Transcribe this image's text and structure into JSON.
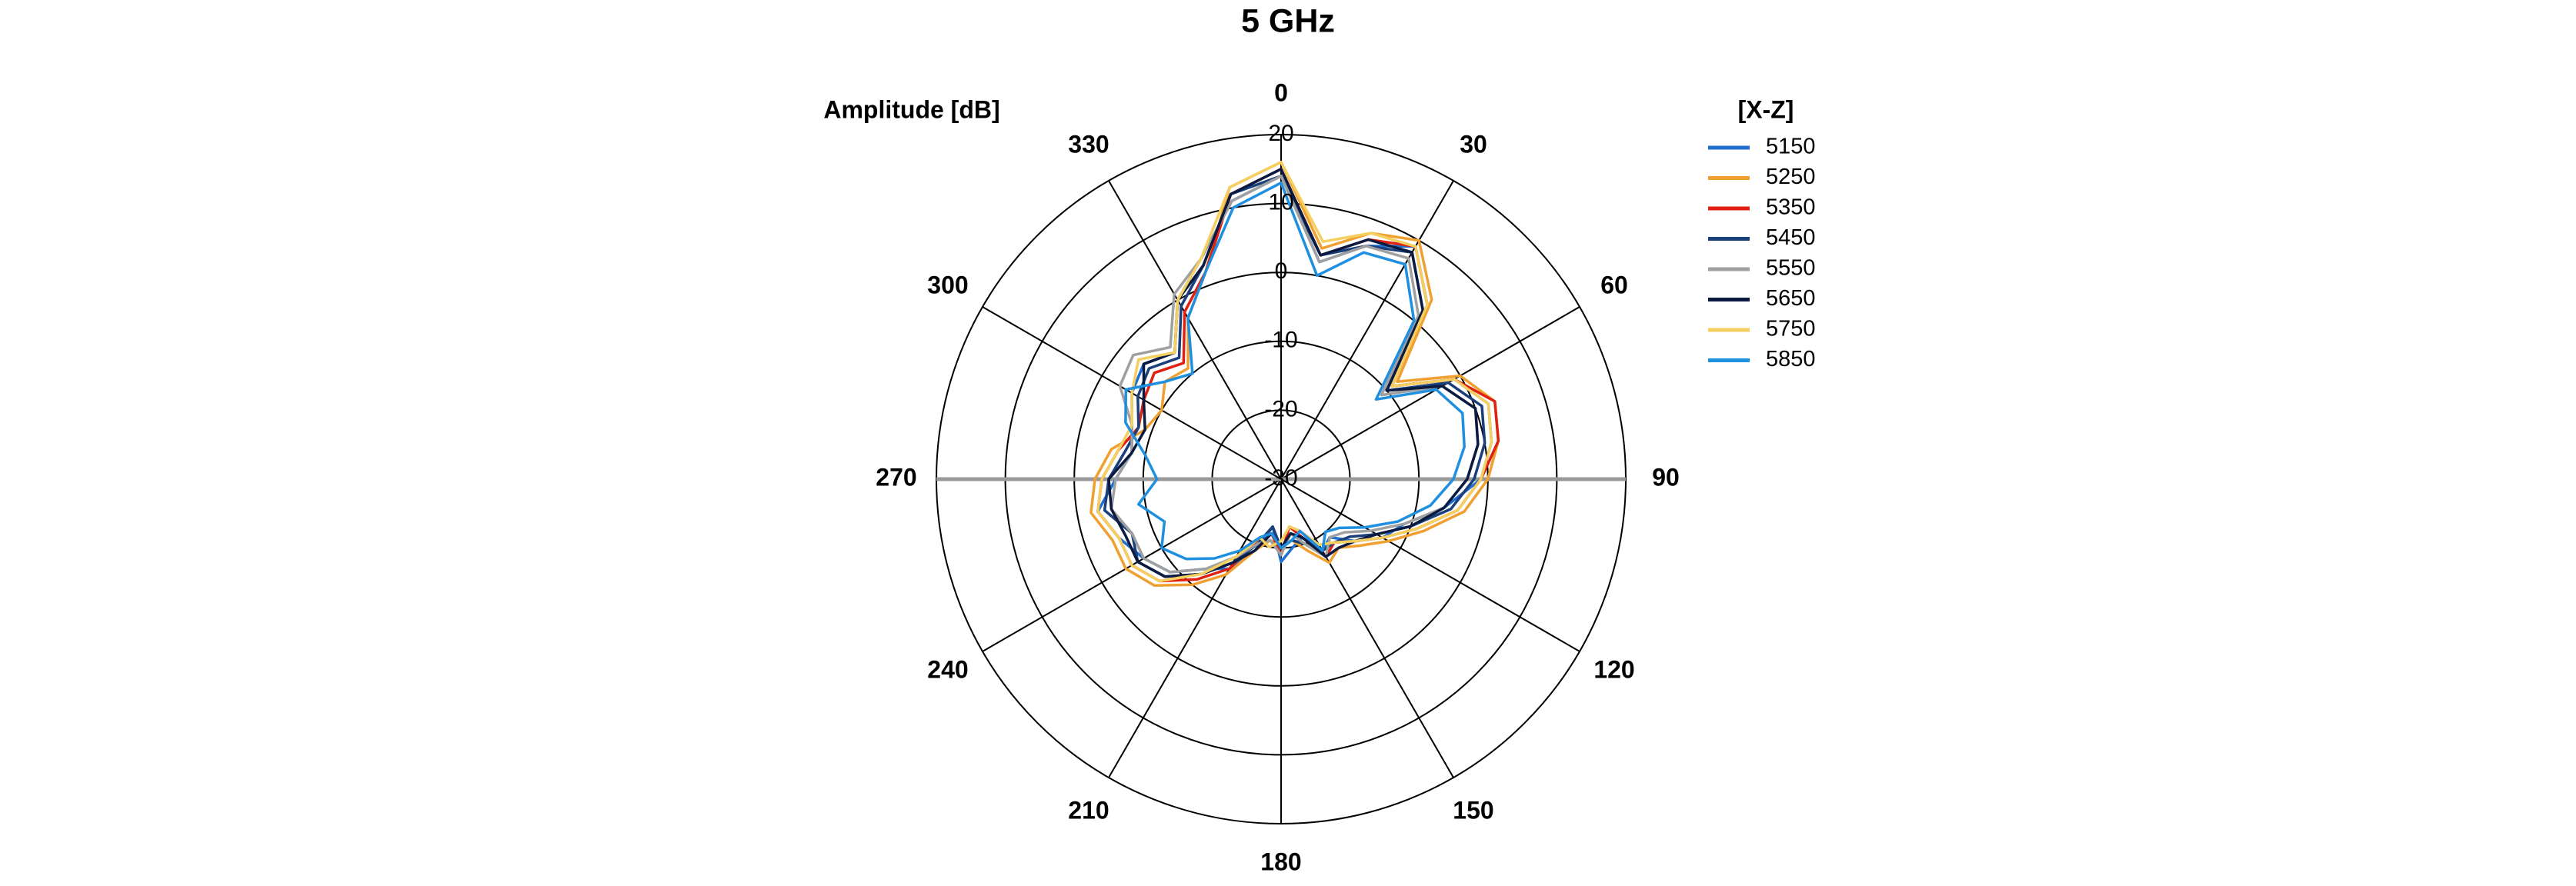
{
  "chart_data": {
    "type": "polar",
    "title": "5 GHz",
    "r_axis_label": "Amplitude [dB]",
    "legend_title": "[X-Z]",
    "x": [
      0,
      10,
      20,
      30,
      40,
      50,
      60,
      70,
      80,
      90,
      100,
      110,
      120,
      130,
      140,
      150,
      160,
      170,
      180,
      190,
      200,
      210,
      220,
      230,
      240,
      250,
      260,
      270,
      280,
      290,
      300,
      310,
      320,
      330,
      340,
      350
    ],
    "xticks": [
      0,
      30,
      60,
      90,
      120,
      150,
      180,
      210,
      240,
      270,
      300,
      330
    ],
    "ylim": [
      -30,
      20
    ],
    "yticks": [
      -30,
      -20,
      -10,
      0,
      10,
      20
    ],
    "series": [
      {
        "name": "5150",
        "color": "#1f6fd0",
        "values": [
          14,
          2,
          6,
          9,
          3,
          -9,
          -1,
          2,
          1,
          -1,
          -6,
          -11,
          -13,
          -16,
          -19,
          -18,
          -21,
          -20,
          -18,
          -23,
          -19,
          -15,
          -13,
          -9,
          -7,
          -5,
          -3,
          -6,
          -8,
          -7,
          -5,
          -4,
          -6,
          0,
          4,
          11
        ]
      },
      {
        "name": "5250",
        "color": "#f0a030",
        "values": [
          16,
          4,
          8,
          10,
          4,
          -8,
          0,
          3,
          2,
          0,
          -3,
          -8,
          -12,
          -15,
          -17,
          -16,
          -19,
          -21,
          -20,
          -21,
          -19,
          -14,
          -10,
          -6,
          -4,
          -4,
          -2,
          -3,
          -5,
          -9,
          -10,
          -8,
          -9,
          -3,
          2,
          13
        ]
      },
      {
        "name": "5350",
        "color": "#e02010",
        "values": [
          15,
          3,
          7,
          9,
          3,
          -9,
          -1,
          3,
          2,
          -1,
          -4,
          -9,
          -13,
          -16,
          -18,
          -17,
          -21,
          -23,
          -19,
          -22,
          -21,
          -15,
          -11,
          -7,
          -5,
          -5,
          -3,
          -4,
          -6,
          -8,
          -7,
          -6,
          -8,
          -2,
          2,
          12
        ]
      },
      {
        "name": "5450",
        "color": "#1a3f7a",
        "values": [
          14,
          3,
          6,
          8,
          2,
          -10,
          -2,
          1,
          0,
          -2,
          -5,
          -10,
          -14,
          -17,
          -18,
          -18,
          -20,
          -21,
          -20,
          -23,
          -20,
          -16,
          -12,
          -8,
          -6,
          -7,
          -4,
          -5,
          -7,
          -8,
          -6,
          -5,
          -7,
          -1,
          3,
          12
        ]
      },
      {
        "name": "5550",
        "color": "#a0a0a0",
        "values": [
          14,
          2,
          6,
          7,
          1,
          -11,
          -3,
          0,
          -1,
          -3,
          -6,
          -11,
          -15,
          -18,
          -19,
          -17,
          -20,
          -22,
          -19,
          -21,
          -20,
          -17,
          -13,
          -9,
          -7,
          -7,
          -5,
          -6,
          -8,
          -7,
          -3,
          -2,
          -5,
          1,
          4,
          11
        ]
      },
      {
        "name": "5650",
        "color": "#0a1a40",
        "values": [
          15,
          3,
          7,
          8,
          2,
          -10,
          -3,
          0,
          -1,
          -3,
          -6,
          -10,
          -14,
          -16,
          -17,
          -17,
          -21,
          -22,
          -20,
          -22,
          -19,
          -16,
          -12,
          -8,
          -6,
          -6,
          -5,
          -5,
          -8,
          -9,
          -7,
          -4,
          -6,
          0,
          3,
          12
        ]
      },
      {
        "name": "5750",
        "color": "#f5d060",
        "values": [
          16,
          5,
          8,
          9,
          3,
          -9,
          -1,
          2,
          1,
          -1,
          -4,
          -9,
          -13,
          -16,
          -18,
          -19,
          -22,
          -23,
          -21,
          -20,
          -21,
          -17,
          -12,
          -7,
          -5,
          -5,
          -3,
          -4,
          -6,
          -7,
          -5,
          -3,
          -6,
          0,
          4,
          13
        ]
      },
      {
        "name": "5850",
        "color": "#1f8fe0",
        "values": [
          13,
          0,
          5,
          6,
          0,
          -12,
          -4,
          -2,
          -3,
          -5,
          -8,
          -12,
          -16,
          -19,
          -20,
          -18,
          -22,
          -21,
          -20,
          -22,
          -21,
          -18,
          -15,
          -12,
          -10,
          -12,
          -9,
          -12,
          -10,
          -6,
          -4,
          -8,
          -10,
          -3,
          2,
          10
        ]
      }
    ]
  }
}
